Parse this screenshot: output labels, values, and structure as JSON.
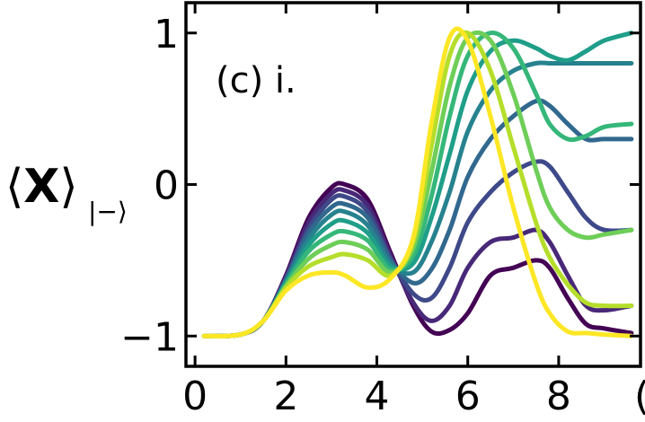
{
  "chart_data": {
    "type": "line",
    "panel_label": "(c) i.",
    "ylabel": {
      "left_bracket": "⟨",
      "symbol": "X",
      "right_bracket": "⟩",
      "subscript": "|−⟩"
    },
    "xlim": [
      -0.2,
      9.8
    ],
    "ylim": [
      -1.2,
      1.2
    ],
    "xticks": [
      0,
      2,
      4,
      6,
      8
    ],
    "xtick_labels": [
      "0",
      "2",
      "4",
      "6",
      "8"
    ],
    "yticks": [
      1,
      0,
      -1
    ],
    "ytick_labels": [
      "1",
      "0",
      "−1"
    ],
    "colormap": "viridis",
    "series_colors": [
      "#440154",
      "#482878",
      "#3e4989",
      "#31688e",
      "#26828e",
      "#1f9e89",
      "#35b779",
      "#6ece58",
      "#b5de2b",
      "#fde725"
    ],
    "series": [
      {
        "x": [
          0.2,
          1,
          1.5,
          2,
          2.5,
          3,
          3.3,
          3.8,
          4.3,
          4.8,
          5.2,
          5.6,
          6,
          6.5,
          7,
          7.5,
          7.8,
          8.2,
          8.6,
          9,
          9.6
        ],
        "y": [
          -1,
          -0.99,
          -0.9,
          -0.6,
          -0.22,
          -0.02,
          0,
          -0.1,
          -0.45,
          -0.8,
          -0.97,
          -0.96,
          -0.85,
          -0.6,
          -0.55,
          -0.5,
          -0.55,
          -0.75,
          -0.92,
          -0.95,
          -0.98
        ]
      },
      {
        "x": [
          0.2,
          1,
          1.5,
          2,
          2.5,
          3,
          3.3,
          3.8,
          4.3,
          4.8,
          5.2,
          5.6,
          6,
          6.5,
          7,
          7.5,
          7.8,
          8.2,
          8.6,
          9,
          9.6
        ],
        "y": [
          -1,
          -0.99,
          -0.9,
          -0.61,
          -0.25,
          -0.06,
          -0.04,
          -0.14,
          -0.47,
          -0.78,
          -0.9,
          -0.8,
          -0.55,
          -0.38,
          -0.35,
          -0.3,
          -0.38,
          -0.6,
          -0.8,
          -0.83,
          -0.8
        ]
      },
      {
        "x": [
          0.2,
          1,
          1.5,
          2,
          2.5,
          3,
          3.3,
          3.8,
          4.3,
          4.8,
          5.2,
          5.6,
          6,
          6.5,
          7,
          7.5,
          7.8,
          8.2,
          8.6,
          9,
          9.6
        ],
        "y": [
          -1,
          -0.99,
          -0.9,
          -0.62,
          -0.29,
          -0.1,
          -0.08,
          -0.18,
          -0.49,
          -0.72,
          -0.75,
          -0.55,
          -0.25,
          -0.05,
          0.08,
          0.15,
          0.12,
          -0.05,
          -0.22,
          -0.3,
          -0.3
        ]
      },
      {
        "x": [
          0.2,
          1,
          1.5,
          2,
          2.5,
          3,
          3.3,
          3.8,
          4.3,
          4.8,
          5.2,
          5.6,
          6,
          6.5,
          7,
          7.5,
          7.8,
          8.2,
          8.6,
          9,
          9.6
        ],
        "y": [
          -1,
          -0.99,
          -0.9,
          -0.63,
          -0.32,
          -0.15,
          -0.13,
          -0.22,
          -0.5,
          -0.65,
          -0.56,
          -0.3,
          0.05,
          0.3,
          0.45,
          0.55,
          0.52,
          0.4,
          0.3,
          0.3,
          0.3
        ]
      },
      {
        "x": [
          0.2,
          1,
          1.5,
          2,
          2.5,
          3,
          3.3,
          3.8,
          4.3,
          4.8,
          5.2,
          5.6,
          6,
          6.5,
          7,
          7.5,
          7.8,
          8.2,
          8.6,
          9,
          9.6
        ],
        "y": [
          -1,
          -0.99,
          -0.9,
          -0.64,
          -0.36,
          -0.2,
          -0.18,
          -0.27,
          -0.52,
          -0.58,
          -0.38,
          -0.05,
          0.35,
          0.62,
          0.75,
          0.8,
          0.8,
          0.8,
          0.8,
          0.8,
          0.8
        ]
      },
      {
        "x": [
          0.2,
          1,
          1.5,
          2,
          2.5,
          3,
          3.3,
          3.8,
          4.3,
          4.8,
          5.2,
          5.6,
          6,
          6.5,
          7,
          7.5,
          7.8,
          8.2,
          8.6,
          9,
          9.6
        ],
        "y": [
          -1,
          -0.99,
          -0.9,
          -0.65,
          -0.4,
          -0.26,
          -0.24,
          -0.32,
          -0.54,
          -0.52,
          -0.22,
          0.2,
          0.62,
          0.88,
          0.95,
          0.9,
          0.85,
          0.82,
          0.88,
          0.95,
          1
        ]
      },
      {
        "x": [
          0.2,
          1,
          1.5,
          2,
          2.5,
          3,
          3.3,
          3.8,
          4.3,
          4.8,
          5.2,
          5.6,
          6,
          6.5,
          7,
          7.5,
          7.8,
          8.2,
          8.6,
          9,
          9.6
        ],
        "y": [
          -1,
          -0.99,
          -0.9,
          -0.66,
          -0.44,
          -0.33,
          -0.31,
          -0.37,
          -0.56,
          -0.47,
          -0.08,
          0.45,
          0.85,
          1,
          0.9,
          0.6,
          0.4,
          0.3,
          0.32,
          0.38,
          0.4
        ]
      },
      {
        "x": [
          0.2,
          1,
          1.5,
          2,
          2.5,
          3,
          3.3,
          3.8,
          4.3,
          4.8,
          5.2,
          5.6,
          6,
          6.5,
          7,
          7.5,
          7.8,
          8.2,
          8.6,
          9,
          9.6
        ],
        "y": [
          -1,
          -0.99,
          -0.9,
          -0.67,
          -0.49,
          -0.4,
          -0.38,
          -0.43,
          -0.58,
          -0.42,
          0.08,
          0.65,
          0.97,
          0.95,
          0.6,
          0.1,
          -0.15,
          -0.3,
          -0.35,
          -0.33,
          -0.3
        ]
      },
      {
        "x": [
          0.2,
          1,
          1.5,
          2,
          2.5,
          3,
          3.3,
          3.8,
          4.3,
          4.8,
          5.2,
          5.6,
          6,
          6.5,
          7,
          7.5,
          7.8,
          8.2,
          8.6,
          9,
          9.6
        ],
        "y": [
          -1,
          -0.99,
          -0.9,
          -0.68,
          -0.54,
          -0.48,
          -0.46,
          -0.5,
          -0.6,
          -0.38,
          0.25,
          0.85,
          1,
          0.75,
          0.25,
          -0.25,
          -0.48,
          -0.66,
          -0.78,
          -0.8,
          -0.8
        ]
      },
      {
        "x": [
          0.2,
          1,
          1.5,
          2,
          2.5,
          3,
          3.3,
          3.8,
          4.3,
          4.8,
          5.2,
          5.6,
          6,
          6.5,
          7,
          7.5,
          7.8,
          8.2,
          8.6,
          9,
          9.6
        ],
        "y": [
          -1,
          -0.99,
          -0.9,
          -0.7,
          -0.6,
          -0.58,
          -0.6,
          -0.68,
          -0.62,
          -0.35,
          0.4,
          0.97,
          0.95,
          0.45,
          -0.15,
          -0.65,
          -0.85,
          -0.97,
          -0.98,
          -0.99,
          -1
        ]
      }
    ]
  }
}
